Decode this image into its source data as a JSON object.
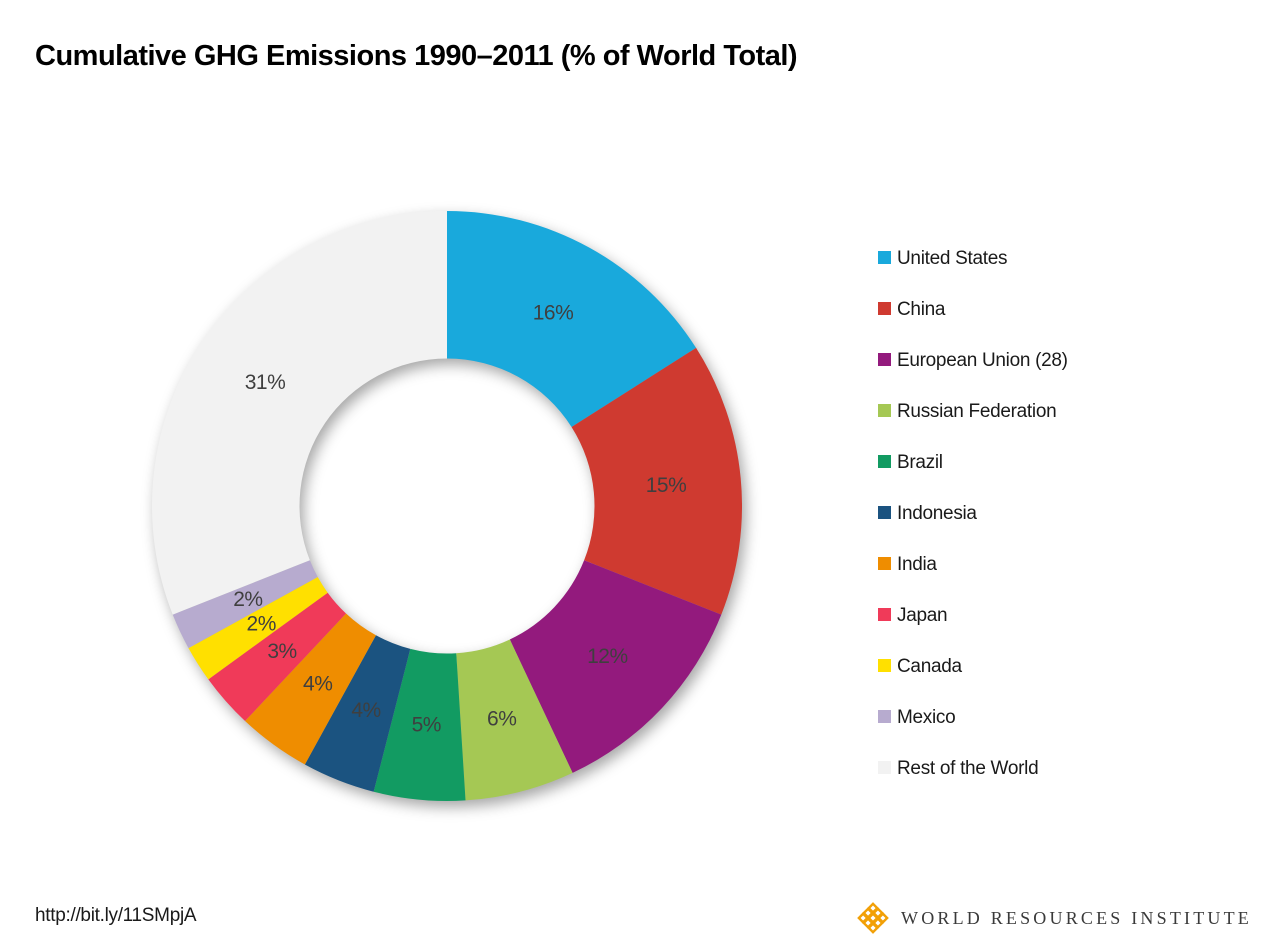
{
  "page": {
    "background": "#FFFFFF"
  },
  "chart_data": {
    "type": "pie",
    "subtype": "donut",
    "title": "Cumulative GHG Emissions 1990–2011 (% of World Total)",
    "legend_position": "right",
    "direction": "clockwise",
    "start_angle_deg": 0,
    "inner_radius_ratio": 0.5,
    "categories": [
      "United States",
      "China",
      "European Union (28)",
      "Russian Federation",
      "Brazil",
      "Indonesia",
      "India",
      "Japan",
      "Canada",
      "Mexico",
      "Rest of the World"
    ],
    "values": [
      16,
      15,
      12,
      6,
      5,
      4,
      4,
      3,
      2,
      2,
      31
    ],
    "labels": [
      "16%",
      "15%",
      "12%",
      "6%",
      "5%",
      "4%",
      "4%",
      "3%",
      "2%",
      "2%",
      "31%"
    ],
    "colors": [
      "#19A9DC",
      "#CF3A30",
      "#931A7D",
      "#A5C854",
      "#129B62",
      "#1B5380",
      "#EF8D00",
      "#F03A59",
      "#FFE000",
      "#B7ABCF",
      "#F2F2F2"
    ],
    "label_color": "#3F3F3F"
  },
  "footer": {
    "source_url": "http://bit.ly/11SMpjA",
    "logo_text": "WORLD RESOURCES INSTITUTE",
    "logo_color": "#F2A007"
  }
}
